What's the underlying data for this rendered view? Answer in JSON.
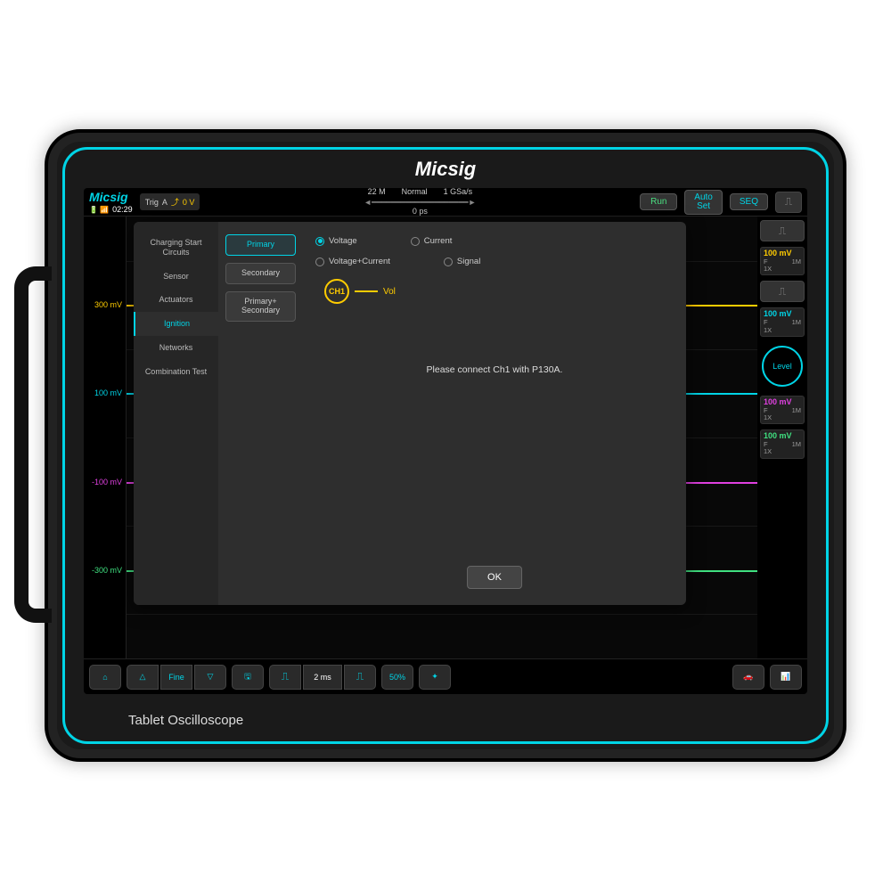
{
  "device": {
    "brand": "Micsig",
    "subtitle": "Tablet Oscilloscope"
  },
  "status": {
    "time": "02:29",
    "trig_label": "Trig",
    "trig_ch": "A",
    "trig_val": "0 V",
    "mem_depth": "22 M",
    "mode": "Normal",
    "sample_rate": "1 GSa/s",
    "time_pos": "0 ps"
  },
  "controls": {
    "run": "Run",
    "autoset": "Auto\nSet",
    "seq": "SEQ"
  },
  "y_axis": [
    {
      "label": "300 mV",
      "color": "#ffcc00",
      "pos": 20
    },
    {
      "label": "100 mV",
      "color": "#00d4e6",
      "pos": 40
    },
    {
      "label": "-100 mV",
      "color": "#e040e0",
      "pos": 60
    },
    {
      "label": "-300 mV",
      "color": "#40e080",
      "pos": 80
    }
  ],
  "traces": [
    {
      "color": "#ffcc00",
      "pos": 20
    },
    {
      "color": "#00d4e6",
      "pos": 40
    },
    {
      "color": "#e040e0",
      "pos": 60
    },
    {
      "color": "#40e080",
      "pos": 80
    }
  ],
  "channels": [
    {
      "val": "100 mV",
      "val_color": "#ffcc00",
      "coupling": "F",
      "imp": "1M",
      "probe": "1X"
    },
    {
      "val": "100 mV",
      "val_color": "#00d4e6",
      "coupling": "F",
      "imp": "1M",
      "probe": "1X"
    },
    {
      "val": "100 mV",
      "val_color": "#e040e0",
      "coupling": "F",
      "imp": "1M",
      "probe": "1X"
    },
    {
      "val": "100 mV",
      "val_color": "#40e080",
      "coupling": "F",
      "imp": "1M",
      "probe": "1X"
    }
  ],
  "level_label": "Level",
  "bottom": {
    "fine": "Fine",
    "timebase": "2 ms",
    "fifty": "50%"
  },
  "modal": {
    "left_menu": [
      "Charging Start Circuits",
      "Sensor",
      "Actuators",
      "Ignition",
      "Networks",
      "Combination Test"
    ],
    "left_active": 3,
    "mid_buttons": [
      "Primary",
      "Secondary",
      "Primary+ Secondary"
    ],
    "mid_active": 0,
    "radios_row1": [
      "Voltage",
      "Current"
    ],
    "radios_row2": [
      "Voltage+Current",
      "Signal"
    ],
    "radio_selected": "Voltage",
    "ch_label": "CH1",
    "ch_sig": "Vol",
    "message": "Please connect Ch1 with P130A.",
    "ok": "OK"
  },
  "colors": {
    "accent": "#00d4e6",
    "ch1": "#ffcc00",
    "ch2": "#00d4e6",
    "ch3": "#e040e0",
    "ch4": "#40e080"
  }
}
